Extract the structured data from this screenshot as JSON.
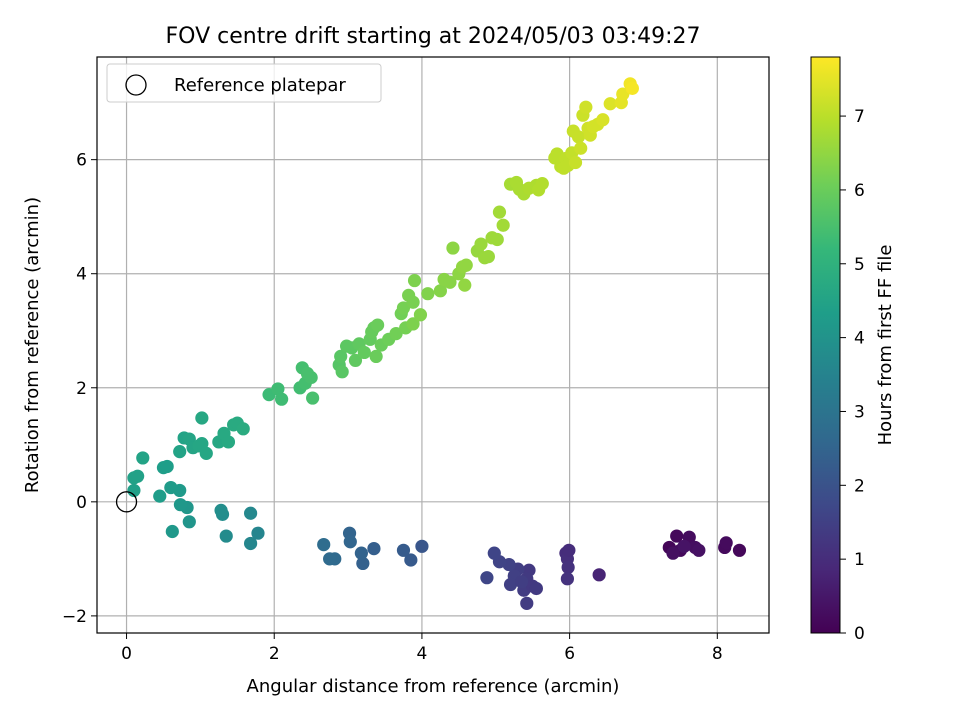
{
  "chart_data": {
    "type": "scatter",
    "title": "FOV centre drift starting at 2024/05/03 03:49:27",
    "xlabel": "Angular distance from reference (arcmin)",
    "ylabel": "Rotation from reference (arcmin)",
    "xlim": [
      -0.4,
      8.7
    ],
    "ylim": [
      -2.3,
      7.8
    ],
    "xticks": [
      0,
      2,
      4,
      6,
      8
    ],
    "yticks": [
      -2,
      0,
      2,
      4,
      6
    ],
    "grid": true,
    "legend": {
      "location": "upper-left",
      "entries": [
        "Reference platepar"
      ]
    },
    "reference_point": {
      "x": 0,
      "y": 0
    },
    "colorbar": {
      "label": "Hours from first FF file",
      "range": [
        0,
        7.8
      ],
      "ticks": [
        0,
        1,
        2,
        3,
        4,
        5,
        6,
        7
      ],
      "colormap": "viridis",
      "colors": [
        "#440154",
        "#482878",
        "#3e4989",
        "#31688e",
        "#26828e",
        "#1f9e89",
        "#35b779",
        "#6ece58",
        "#b5de2b",
        "#fde725"
      ]
    },
    "points": [
      {
        "x": 7.35,
        "y": -0.8,
        "c": 0.1
      },
      {
        "x": 7.45,
        "y": -0.6,
        "c": 0.15
      },
      {
        "x": 7.5,
        "y": -0.85,
        "c": 0.2
      },
      {
        "x": 7.62,
        "y": -0.62,
        "c": 0.25
      },
      {
        "x": 7.7,
        "y": -0.8,
        "c": 0.3
      },
      {
        "x": 7.75,
        "y": -0.85,
        "c": 0.35
      },
      {
        "x": 7.55,
        "y": -0.78,
        "c": 0.4
      },
      {
        "x": 8.1,
        "y": -0.8,
        "c": 0.2
      },
      {
        "x": 8.12,
        "y": -0.72,
        "c": 0.22
      },
      {
        "x": 8.3,
        "y": -0.85,
        "c": 0.15
      },
      {
        "x": 7.4,
        "y": -0.9,
        "c": 0.3
      },
      {
        "x": 6.4,
        "y": -1.28,
        "c": 0.8
      },
      {
        "x": 5.95,
        "y": -0.9,
        "c": 1.0
      },
      {
        "x": 5.97,
        "y": -1.0,
        "c": 1.05
      },
      {
        "x": 5.98,
        "y": -1.15,
        "c": 1.1
      },
      {
        "x": 5.97,
        "y": -1.35,
        "c": 1.15
      },
      {
        "x": 5.99,
        "y": -0.85,
        "c": 1.0
      },
      {
        "x": 5.45,
        "y": -1.2,
        "c": 1.3
      },
      {
        "x": 5.42,
        "y": -1.35,
        "c": 1.35
      },
      {
        "x": 5.38,
        "y": -1.55,
        "c": 1.4
      },
      {
        "x": 5.5,
        "y": -1.48,
        "c": 1.3
      },
      {
        "x": 5.55,
        "y": -1.52,
        "c": 1.35
      },
      {
        "x": 5.42,
        "y": -1.78,
        "c": 1.4
      },
      {
        "x": 5.3,
        "y": -1.18,
        "c": 1.45
      },
      {
        "x": 5.25,
        "y": -1.3,
        "c": 1.5
      },
      {
        "x": 5.2,
        "y": -1.45,
        "c": 1.5
      },
      {
        "x": 5.18,
        "y": -1.1,
        "c": 1.55
      },
      {
        "x": 5.05,
        "y": -1.05,
        "c": 1.6
      },
      {
        "x": 4.98,
        "y": -0.9,
        "c": 1.62
      },
      {
        "x": 4.88,
        "y": -1.33,
        "c": 1.65
      },
      {
        "x": 5.35,
        "y": -1.4,
        "c": 1.45
      },
      {
        "x": 4.0,
        "y": -0.78,
        "c": 2.1
      },
      {
        "x": 3.85,
        "y": -1.02,
        "c": 2.2
      },
      {
        "x": 3.75,
        "y": -0.85,
        "c": 2.25
      },
      {
        "x": 3.35,
        "y": -0.82,
        "c": 2.35
      },
      {
        "x": 3.2,
        "y": -1.08,
        "c": 2.4
      },
      {
        "x": 3.18,
        "y": -0.9,
        "c": 2.45
      },
      {
        "x": 3.02,
        "y": -0.55,
        "c": 2.5
      },
      {
        "x": 3.03,
        "y": -0.7,
        "c": 2.55
      },
      {
        "x": 2.82,
        "y": -1.0,
        "c": 2.65
      },
      {
        "x": 2.75,
        "y": -1.0,
        "c": 2.7
      },
      {
        "x": 2.67,
        "y": -0.75,
        "c": 2.75
      },
      {
        "x": 1.78,
        "y": -0.55,
        "c": 3.55
      },
      {
        "x": 1.68,
        "y": -0.73,
        "c": 3.6
      },
      {
        "x": 1.68,
        "y": -0.2,
        "c": 3.65
      },
      {
        "x": 1.35,
        "y": -0.6,
        "c": 3.75
      },
      {
        "x": 1.3,
        "y": -0.22,
        "c": 3.8
      },
      {
        "x": 1.28,
        "y": -0.15,
        "c": 3.85
      },
      {
        "x": 0.85,
        "y": -0.35,
        "c": 4.05
      },
      {
        "x": 0.82,
        "y": -0.1,
        "c": 4.1
      },
      {
        "x": 0.73,
        "y": -0.05,
        "c": 4.15
      },
      {
        "x": 0.62,
        "y": -0.52,
        "c": 4.15
      },
      {
        "x": 0.72,
        "y": 0.2,
        "c": 4.2
      },
      {
        "x": 0.6,
        "y": 0.25,
        "c": 4.25
      },
      {
        "x": 0.45,
        "y": 0.1,
        "c": 4.3
      },
      {
        "x": 0.5,
        "y": 0.6,
        "c": 4.35
      },
      {
        "x": 0.55,
        "y": 0.62,
        "c": 4.35
      },
      {
        "x": 0.1,
        "y": 0.2,
        "c": 4.4
      },
      {
        "x": 0.1,
        "y": 0.42,
        "c": 4.45
      },
      {
        "x": 0.15,
        "y": 0.45,
        "c": 4.45
      },
      {
        "x": 0.22,
        "y": 0.77,
        "c": 4.5
      },
      {
        "x": 0.72,
        "y": 0.88,
        "c": 4.5
      },
      {
        "x": 0.78,
        "y": 1.12,
        "c": 4.5
      },
      {
        "x": 0.85,
        "y": 1.1,
        "c": 4.55
      },
      {
        "x": 0.9,
        "y": 0.95,
        "c": 4.55
      },
      {
        "x": 0.98,
        "y": 0.98,
        "c": 4.6
      },
      {
        "x": 1.02,
        "y": 1.02,
        "c": 4.6
      },
      {
        "x": 1.08,
        "y": 0.85,
        "c": 4.6
      },
      {
        "x": 1.02,
        "y": 1.47,
        "c": 4.65
      },
      {
        "x": 1.25,
        "y": 1.05,
        "c": 4.65
      },
      {
        "x": 1.32,
        "y": 1.2,
        "c": 4.7
      },
      {
        "x": 1.38,
        "y": 1.05,
        "c": 4.7
      },
      {
        "x": 1.45,
        "y": 1.35,
        "c": 4.75
      },
      {
        "x": 1.5,
        "y": 1.38,
        "c": 4.75
      },
      {
        "x": 1.58,
        "y": 1.28,
        "c": 4.8
      },
      {
        "x": 1.93,
        "y": 1.88,
        "c": 5.3
      },
      {
        "x": 2.05,
        "y": 1.98,
        "c": 5.35
      },
      {
        "x": 2.1,
        "y": 1.8,
        "c": 5.35
      },
      {
        "x": 2.35,
        "y": 2.0,
        "c": 5.4
      },
      {
        "x": 2.38,
        "y": 2.35,
        "c": 5.45
      },
      {
        "x": 2.42,
        "y": 2.08,
        "c": 5.45
      },
      {
        "x": 2.5,
        "y": 2.18,
        "c": 5.5
      },
      {
        "x": 2.52,
        "y": 1.82,
        "c": 5.5
      },
      {
        "x": 2.45,
        "y": 2.25,
        "c": 5.5
      },
      {
        "x": 2.88,
        "y": 2.4,
        "c": 5.7
      },
      {
        "x": 2.9,
        "y": 2.55,
        "c": 5.75
      },
      {
        "x": 2.92,
        "y": 2.28,
        "c": 5.75
      },
      {
        "x": 2.98,
        "y": 2.73,
        "c": 5.8
      },
      {
        "x": 3.05,
        "y": 2.7,
        "c": 5.8
      },
      {
        "x": 3.1,
        "y": 2.48,
        "c": 5.85
      },
      {
        "x": 3.15,
        "y": 2.77,
        "c": 5.85
      },
      {
        "x": 3.22,
        "y": 2.62,
        "c": 5.9
      },
      {
        "x": 3.3,
        "y": 2.85,
        "c": 5.9
      },
      {
        "x": 3.32,
        "y": 2.98,
        "c": 5.95
      },
      {
        "x": 3.35,
        "y": 3.05,
        "c": 5.95
      },
      {
        "x": 3.38,
        "y": 2.55,
        "c": 6.0
      },
      {
        "x": 3.4,
        "y": 3.1,
        "c": 6.0
      },
      {
        "x": 3.45,
        "y": 2.75,
        "c": 6.0
      },
      {
        "x": 3.55,
        "y": 2.85,
        "c": 6.05
      },
      {
        "x": 3.65,
        "y": 2.95,
        "c": 6.1
      },
      {
        "x": 3.72,
        "y": 3.3,
        "c": 6.1
      },
      {
        "x": 3.75,
        "y": 3.4,
        "c": 6.15
      },
      {
        "x": 3.78,
        "y": 3.05,
        "c": 6.15
      },
      {
        "x": 3.82,
        "y": 3.62,
        "c": 6.2
      },
      {
        "x": 3.88,
        "y": 3.5,
        "c": 6.2
      },
      {
        "x": 3.9,
        "y": 3.88,
        "c": 6.25
      },
      {
        "x": 3.88,
        "y": 3.12,
        "c": 6.25
      },
      {
        "x": 3.98,
        "y": 3.28,
        "c": 6.3
      },
      {
        "x": 4.08,
        "y": 3.65,
        "c": 6.3
      },
      {
        "x": 4.25,
        "y": 3.7,
        "c": 6.35
      },
      {
        "x": 4.3,
        "y": 3.9,
        "c": 6.4
      },
      {
        "x": 4.38,
        "y": 3.85,
        "c": 6.4
      },
      {
        "x": 4.42,
        "y": 4.45,
        "c": 6.45
      },
      {
        "x": 4.5,
        "y": 4.0,
        "c": 6.45
      },
      {
        "x": 4.55,
        "y": 4.12,
        "c": 6.5
      },
      {
        "x": 4.58,
        "y": 3.8,
        "c": 6.5
      },
      {
        "x": 4.6,
        "y": 4.15,
        "c": 6.5
      },
      {
        "x": 4.75,
        "y": 4.4,
        "c": 6.55
      },
      {
        "x": 4.8,
        "y": 4.52,
        "c": 6.6
      },
      {
        "x": 4.85,
        "y": 4.28,
        "c": 6.6
      },
      {
        "x": 4.9,
        "y": 4.3,
        "c": 6.6
      },
      {
        "x": 4.95,
        "y": 4.63,
        "c": 6.65
      },
      {
        "x": 5.02,
        "y": 4.6,
        "c": 6.65
      },
      {
        "x": 5.05,
        "y": 5.08,
        "c": 6.7
      },
      {
        "x": 5.1,
        "y": 4.85,
        "c": 6.7
      },
      {
        "x": 5.2,
        "y": 5.57,
        "c": 6.75
      },
      {
        "x": 5.28,
        "y": 5.6,
        "c": 6.8
      },
      {
        "x": 5.32,
        "y": 5.48,
        "c": 6.8
      },
      {
        "x": 5.38,
        "y": 5.4,
        "c": 6.8
      },
      {
        "x": 5.45,
        "y": 5.5,
        "c": 6.85
      },
      {
        "x": 5.55,
        "y": 5.55,
        "c": 6.85
      },
      {
        "x": 5.58,
        "y": 5.47,
        "c": 6.9
      },
      {
        "x": 5.63,
        "y": 5.58,
        "c": 6.9
      },
      {
        "x": 5.8,
        "y": 6.03,
        "c": 7.0
      },
      {
        "x": 5.83,
        "y": 6.1,
        "c": 7.0
      },
      {
        "x": 5.88,
        "y": 5.88,
        "c": 7.0
      },
      {
        "x": 5.92,
        "y": 5.85,
        "c": 7.05
      },
      {
        "x": 5.95,
        "y": 6.02,
        "c": 7.05
      },
      {
        "x": 5.98,
        "y": 5.9,
        "c": 7.05
      },
      {
        "x": 6.03,
        "y": 6.12,
        "c": 7.1
      },
      {
        "x": 6.05,
        "y": 6.5,
        "c": 7.15
      },
      {
        "x": 6.08,
        "y": 5.95,
        "c": 7.15
      },
      {
        "x": 6.12,
        "y": 6.4,
        "c": 7.15
      },
      {
        "x": 6.15,
        "y": 6.2,
        "c": 7.2
      },
      {
        "x": 6.18,
        "y": 6.78,
        "c": 7.2
      },
      {
        "x": 6.22,
        "y": 6.92,
        "c": 7.25
      },
      {
        "x": 6.25,
        "y": 6.55,
        "c": 7.25
      },
      {
        "x": 6.28,
        "y": 6.43,
        "c": 7.25
      },
      {
        "x": 6.32,
        "y": 6.58,
        "c": 7.3
      },
      {
        "x": 6.38,
        "y": 6.62,
        "c": 7.3
      },
      {
        "x": 6.45,
        "y": 6.7,
        "c": 7.35
      },
      {
        "x": 6.55,
        "y": 6.98,
        "c": 7.4
      },
      {
        "x": 6.7,
        "y": 7.0,
        "c": 7.5
      },
      {
        "x": 6.72,
        "y": 7.15,
        "c": 7.55
      },
      {
        "x": 6.82,
        "y": 7.33,
        "c": 7.65
      },
      {
        "x": 6.85,
        "y": 7.25,
        "c": 7.7
      }
    ]
  }
}
